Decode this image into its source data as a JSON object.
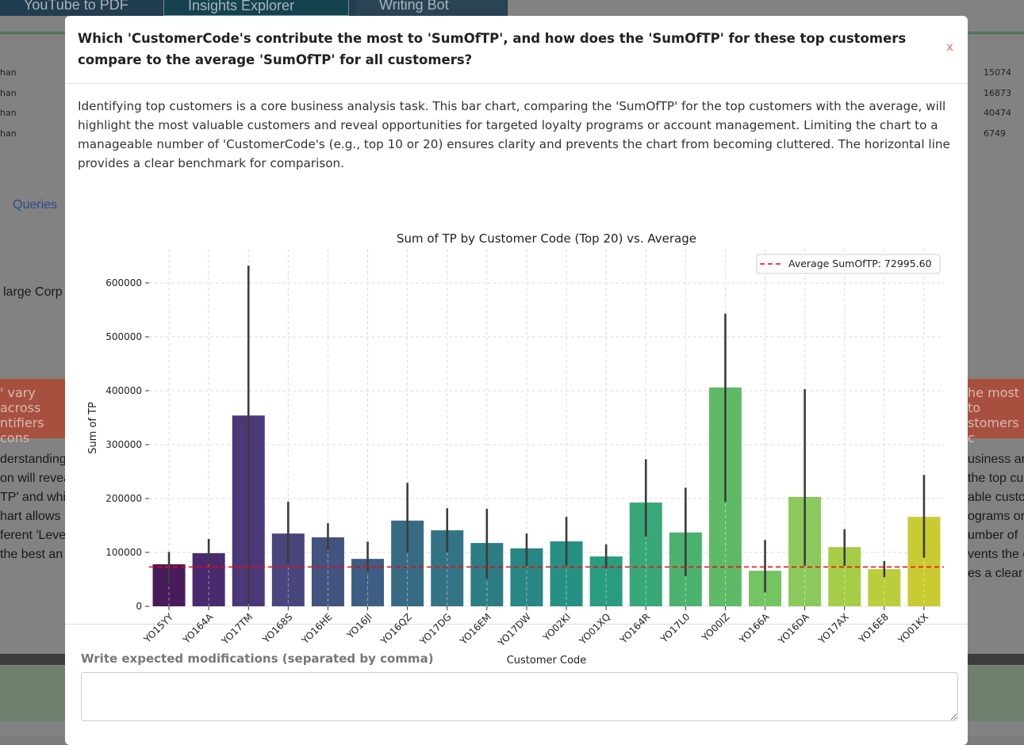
{
  "background": {
    "tabs": [
      "YouTube to PDF",
      "Insights Explorer",
      "Writing Bot"
    ],
    "table_left": [
      "han",
      "han",
      "han",
      "han"
    ],
    "table_right": [
      "15074",
      "16873",
      "40474",
      "6749"
    ],
    "queries_link": "Queries",
    "left_fragment": "large Corp",
    "red_left": [
      "' vary across",
      "ntifiers cons"
    ],
    "red_right": [
      "he most to",
      "stomers c"
    ],
    "left_lines": [
      "derstanding",
      "on will revea",
      "TP' and whi",
      "hart allows",
      "ferent 'Leve",
      "the best an"
    ],
    "right_lines": [
      "usiness an",
      "the top cu",
      "able custo",
      "ograms or",
      "umber of",
      "vents the c",
      "es a clear b"
    ]
  },
  "modal": {
    "title": "Which 'CustomerCode's contribute the most to 'SumOfTP', and how does the 'SumOfTP' for these top customers compare to the average 'SumOfTP' for all customers?",
    "close_label": "x",
    "description": "Identifying top customers is a core business analysis task. This bar chart, comparing the 'SumOfTP' for the top customers with the average, will highlight the most valuable customers and reveal opportunities for targeted loyalty programs or account management. Limiting the chart to a manageable number of 'CustomerCode's (e.g., top 10 or 20) ensures clarity and prevents the chart from becoming cluttered. The horizontal line provides a clear benchmark for comparison.",
    "modifications_label": "Write expected modifications (separated by comma)",
    "modifications_value": ""
  },
  "chart_data": {
    "type": "bar",
    "title": "Sum of TP by Customer Code (Top 20) vs. Average",
    "xlabel": "Customer Code",
    "ylabel": "Sum of TP",
    "ylim": [
      0,
      660000
    ],
    "yticks": [
      0,
      100000,
      200000,
      300000,
      400000,
      500000,
      600000
    ],
    "grid": true,
    "legend_position": "top-right",
    "categories": [
      "YO15YY",
      "YO164A",
      "YO17TM",
      "YO168S",
      "YO16HE",
      "YO16JI",
      "YO16QZ",
      "YO17DG",
      "YO16EM",
      "YO17DW",
      "YO02KI",
      "YO01XQ",
      "YO164R",
      "YO17L0",
      "YO00IZ",
      "YO166A",
      "YO16DA",
      "YO17AX",
      "YO16E8",
      "YO01KX"
    ],
    "values": [
      78000,
      98500,
      354000,
      135000,
      128000,
      88000,
      159000,
      141000,
      117500,
      107500,
      120500,
      92500,
      192500,
      137000,
      406000,
      66000,
      203000,
      110000,
      69000,
      166000
    ],
    "error_low": [
      41000,
      78000,
      5000,
      78000,
      104000,
      63000,
      100000,
      100000,
      51000,
      75000,
      75000,
      70000,
      129000,
      56000,
      194000,
      26000,
      75000,
      75000,
      54000,
      90000
    ],
    "error_high": [
      101000,
      125000,
      632000,
      194000,
      154000,
      120000,
      229000,
      182000,
      181000,
      135000,
      166000,
      115000,
      273000,
      220000,
      543000,
      123000,
      403000,
      143000,
      84000,
      244000
    ],
    "colors": [
      "#481b5a",
      "#4a2a6f",
      "#4b3878",
      "#48467c",
      "#43537f",
      "#3d5e82",
      "#376a83",
      "#327384",
      "#2d7e84",
      "#288684",
      "#269183",
      "#2a9c7f",
      "#38a878",
      "#4cb26f",
      "#5fba68",
      "#74c461",
      "#8cc95c",
      "#a6cd47",
      "#bccd3c",
      "#c9cb33"
    ],
    "average": {
      "label": "Average SumOfTP: 72995.60",
      "value": 72995.6,
      "color": "#ff0000"
    }
  }
}
